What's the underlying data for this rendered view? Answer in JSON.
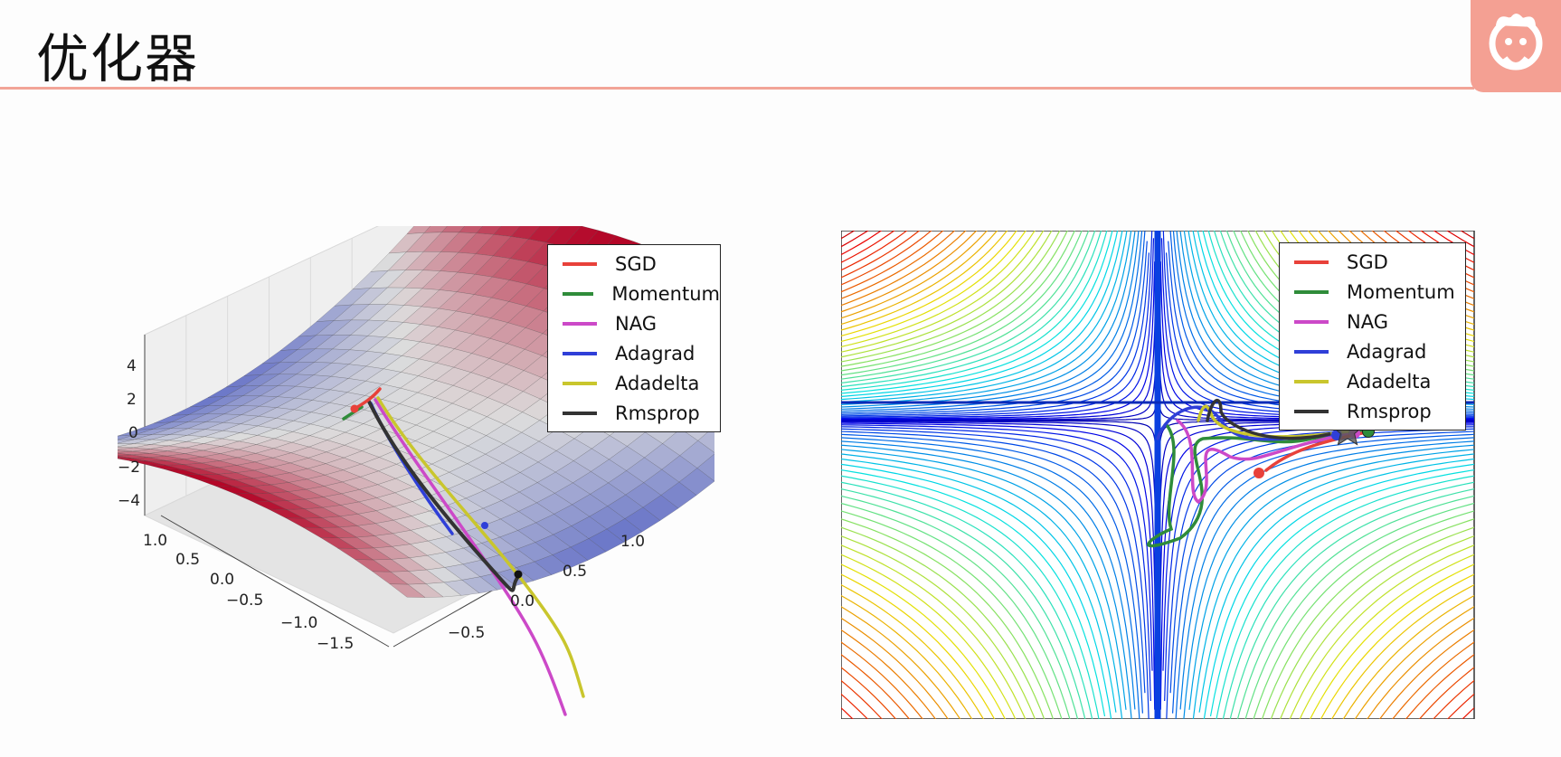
{
  "slide": {
    "title": "优化器"
  },
  "colors": {
    "SGD": "#e8413a",
    "Momentum": "#2f8c3a",
    "NAG": "#cc49c8",
    "Adagrad": "#2f3fd8",
    "Adadelta": "#c9c62d",
    "Rmsprop": "#333333"
  },
  "chart_data": [
    {
      "type": "surface3d",
      "title": "",
      "z_ticks": [
        "4",
        "2",
        "0",
        "−2",
        "−4"
      ],
      "x_ticks": [
        "1.0",
        "0.5",
        "0.0",
        "−0.5",
        "−1.0",
        "−1.5"
      ],
      "y_ticks": [
        "1.0",
        "0.5",
        "0.0",
        "−0.5"
      ],
      "legend": [
        "SGD",
        "Momentum",
        "NAG",
        "Adagrad",
        "Adadelta",
        "Rmsprop"
      ],
      "legend_position": "top-right",
      "colormap": "coolwarm"
    },
    {
      "type": "contour",
      "title": "",
      "legend": [
        "SGD",
        "Momentum",
        "NAG",
        "Adagrad",
        "Adadelta",
        "Rmsprop"
      ],
      "legend_position": "top-right",
      "colormap": "jet"
    }
  ]
}
